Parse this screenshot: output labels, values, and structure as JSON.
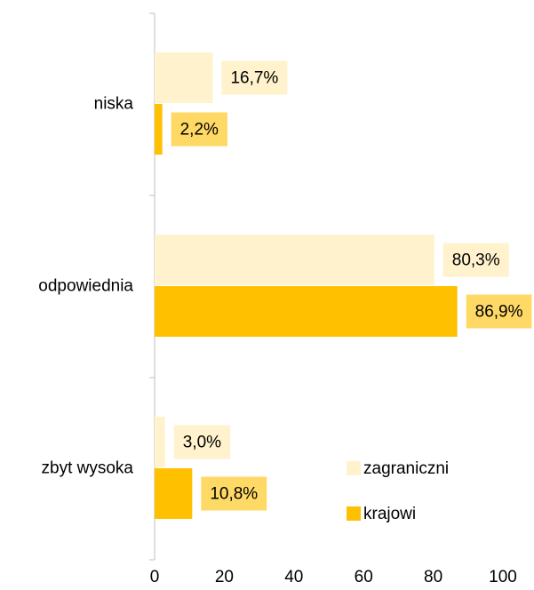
{
  "chart_data": {
    "type": "hbar",
    "categories": [
      "niska",
      "odpowiednia",
      "zbyt wysoka"
    ],
    "series": [
      {
        "name": "zagraniczni",
        "color": "#fff2cc",
        "label_color": "#fff2cc",
        "values": [
          16.7,
          80.3,
          3.0
        ],
        "value_labels": [
          "16,7%",
          "80,3%",
          "3,0%"
        ]
      },
      {
        "name": "krajowi",
        "color": "#ffc000",
        "label_color": "#ffd966",
        "values": [
          2.2,
          86.9,
          10.8
        ],
        "value_labels": [
          "2,2%",
          "86,9%",
          "10,8%"
        ]
      }
    ],
    "xlim": [
      0,
      100
    ],
    "xticks": [
      0,
      20,
      40,
      60,
      80,
      100
    ],
    "grid": false,
    "legend": "lower right"
  }
}
